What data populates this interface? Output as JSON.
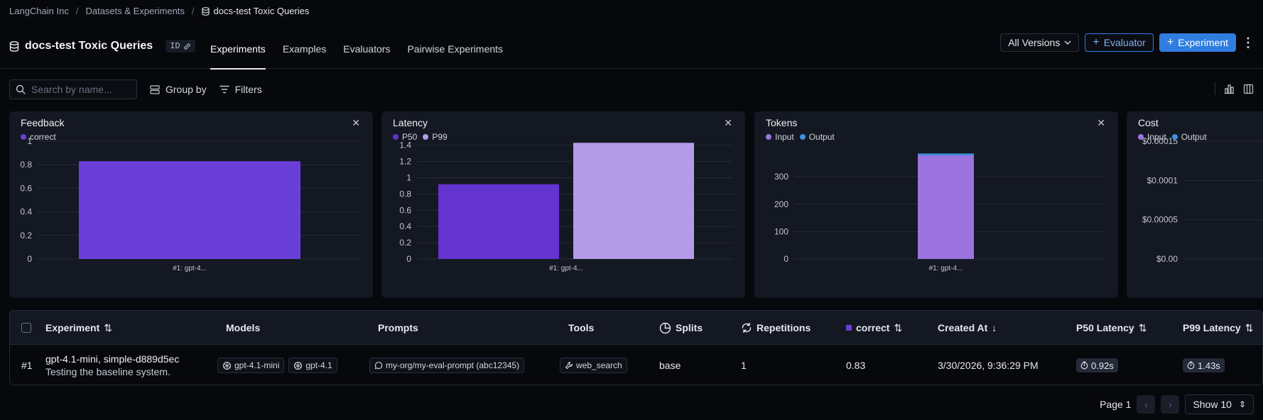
{
  "breadcrumb": {
    "items": [
      "LangChain Inc",
      "Datasets & Experiments"
    ],
    "current": "docs-test Toxic Queries"
  },
  "header": {
    "title": "docs-test Toxic Queries",
    "id_label": "ID",
    "tabs": [
      "Experiments",
      "Examples",
      "Evaluators",
      "Pairwise Experiments"
    ],
    "active_tab": "Experiments",
    "version_select": "All Versions",
    "evaluator_button": "Evaluator",
    "experiment_button": "Experiment"
  },
  "toolbar": {
    "search_placeholder": "Search by name...",
    "group_by": "Group by",
    "filters": "Filters"
  },
  "cards": {
    "feedback": {
      "title": "Feedback",
      "legend": [
        "correct"
      ]
    },
    "latency": {
      "title": "Latency",
      "legend": [
        "P50",
        "P99"
      ]
    },
    "tokens": {
      "title": "Tokens",
      "legend": [
        "Input",
        "Output"
      ]
    },
    "cost": {
      "title": "Cost",
      "legend": [
        "Input",
        "Output"
      ]
    }
  },
  "chart_data": [
    {
      "type": "bar",
      "title": "Feedback",
      "categories": [
        "#1: gpt-4..."
      ],
      "series": [
        {
          "name": "correct",
          "values": [
            0.83
          ]
        }
      ],
      "yticks": [
        "1",
        "0.8",
        "0.6",
        "0.4",
        "0.2",
        "0"
      ],
      "ylim": [
        0,
        1
      ],
      "grid": true,
      "legend": "top-left"
    },
    {
      "type": "bar",
      "title": "Latency",
      "categories": [
        "#1: gpt-4..."
      ],
      "series": [
        {
          "name": "P50",
          "values": [
            0.92
          ]
        },
        {
          "name": "P99",
          "values": [
            1.43
          ]
        }
      ],
      "yticks": [
        "1.4",
        "1.2",
        "1",
        "0.8",
        "0.6",
        "0.4",
        "0.2",
        "0"
      ],
      "ylim": [
        0,
        1.45
      ],
      "grid": true,
      "legend": "top-left"
    },
    {
      "type": "bar",
      "title": "Tokens",
      "stacked": true,
      "categories": [
        "#1: gpt-4..."
      ],
      "series": [
        {
          "name": "Input",
          "values": [
            378
          ]
        },
        {
          "name": "Output",
          "values": [
            7
          ]
        }
      ],
      "yticks": [
        "300",
        "200",
        "100",
        "0"
      ],
      "ylim": [
        0,
        430
      ],
      "grid": true,
      "legend": "top-left"
    },
    {
      "type": "bar",
      "title": "Cost",
      "categories": [],
      "series": [
        {
          "name": "Input",
          "values": []
        },
        {
          "name": "Output",
          "values": []
        }
      ],
      "yticks": [
        "$0.00015",
        "$0.0001",
        "$0.00005",
        "$0.00"
      ],
      "ylim": [
        0,
        0.00015
      ],
      "grid": true,
      "legend": "top-left"
    }
  ],
  "colors": {
    "correct": "#6a3fd8",
    "p50": "#6434d0",
    "p99": "#b39be8",
    "input": "#9b74e0",
    "output": "#3f8fe0",
    "primary": "#2f7de1"
  },
  "table": {
    "headers": {
      "experiment": "Experiment",
      "models": "Models",
      "prompts": "Prompts",
      "tools": "Tools",
      "splits": "Splits",
      "repetitions": "Repetitions",
      "correct": "correct",
      "created_at": "Created At",
      "p50": "P50 Latency",
      "p99": "P99 Latency"
    },
    "rows": [
      {
        "index": "#1",
        "name": "gpt-4.1-mini, simple-d889d5ec",
        "description": "Testing the baseline system.",
        "models": [
          "gpt-4.1-mini",
          "gpt-4.1"
        ],
        "prompt": "my-org/my-eval-prompt (abc12345)",
        "tool": "web_search",
        "split": "base",
        "repetitions": "1",
        "correct": "0.83",
        "created_at": "3/30/2026, 9:36:29 PM",
        "p50": "0.92s",
        "p99": "1.43s"
      }
    ]
  },
  "pagination": {
    "page": "Page 1",
    "show": "Show 10"
  }
}
